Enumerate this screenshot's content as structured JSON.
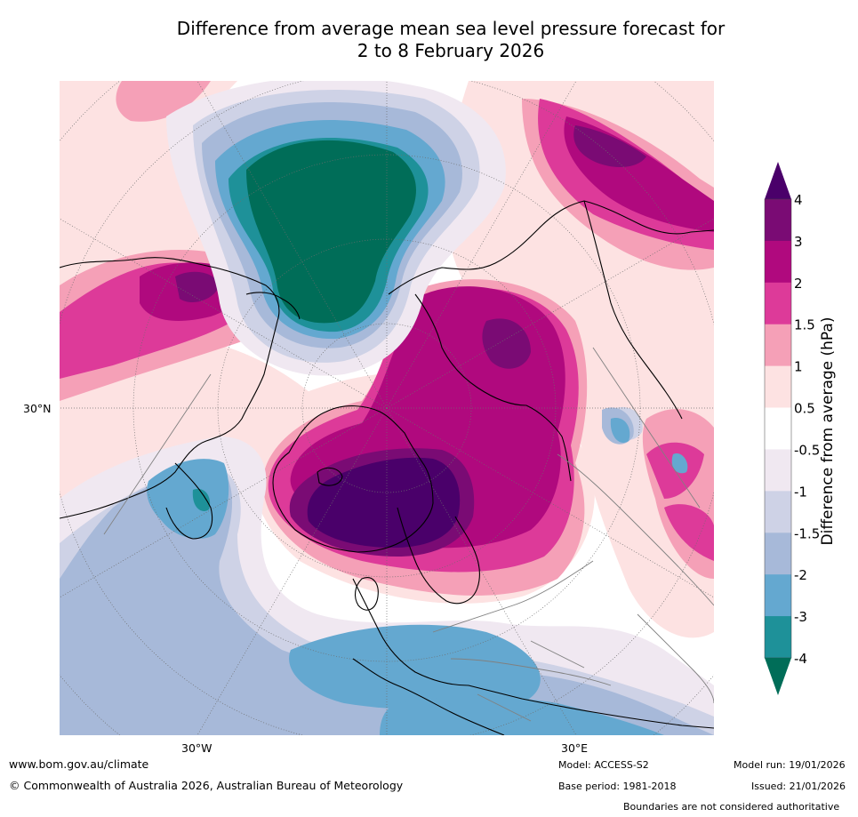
{
  "title": {
    "line1": "Difference from average mean sea level pressure forecast for",
    "line2": "2 to 8 February 2026"
  },
  "map": {
    "lat_label_30n": "30°N",
    "lon_label_30w": "30°W",
    "lon_label_30e": "30°E"
  },
  "colorbar": {
    "title": "Difference from average (hPa)",
    "tick_labels": [
      "4",
      "3",
      "2",
      "1.5",
      "1",
      "0.5",
      "-0.5",
      "-1",
      "-1.5",
      "-2",
      "-3",
      "-4"
    ],
    "bands": [
      {
        "range": "3 to 4",
        "color": "#7a0b74"
      },
      {
        "range": "2 to 3",
        "color": "#b0097e"
      },
      {
        "range": "1.5 to 2",
        "color": "#dd3a99"
      },
      {
        "range": "1 to 1.5",
        "color": "#f5a0b7"
      },
      {
        "range": "0.5 to 1",
        "color": "#fde2e2"
      },
      {
        "range": "-0.5 to 0.5",
        "color": "#ffffff"
      },
      {
        "range": "-1 to -0.5",
        "color": "#f0e8f1"
      },
      {
        "range": "-1.5 to -1",
        "color": "#ced2e6"
      },
      {
        "range": "-2 to -1.5",
        "color": "#a7b9d9"
      },
      {
        "range": "-3 to -2",
        "color": "#64a8d0"
      },
      {
        "range": "-4 to -3",
        "color": "#1e9199"
      }
    ],
    "over_color": "#4a006a",
    "under_color": "#006d58"
  },
  "palette": {
    "deep_purple": "#4a006a",
    "dark_teal": "#006d58",
    "coastline": "#000000",
    "borders": "#808080"
  },
  "footer": {
    "website": "www.bom.gov.au/climate",
    "copyright": "© Commonwealth of Australia 2026, Australian Bureau of Meteorology",
    "model": "Model: ACCESS-S2",
    "base_period": "Base period: 1981-2018",
    "model_run": "Model run: 19/01/2026",
    "issued": "Issued: 21/01/2026",
    "disclaimer": "Boundaries are not considered authoritative"
  }
}
